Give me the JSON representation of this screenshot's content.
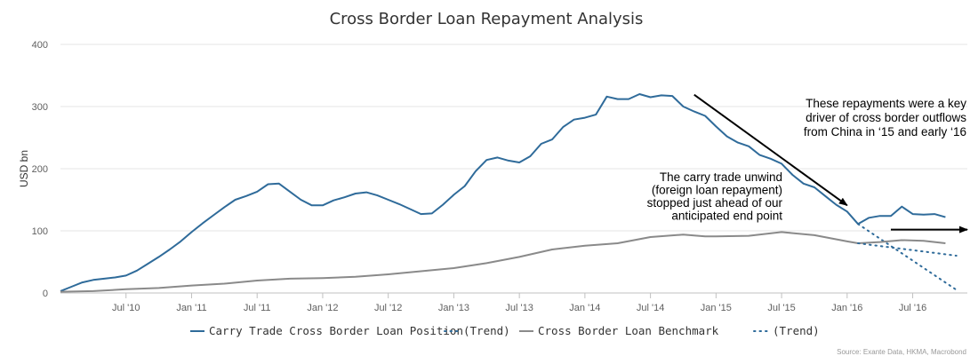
{
  "chart_data": {
    "type": "line",
    "title": "Cross Border Loan Repayment Analysis",
    "ylabel": "USD bn",
    "ylim": [
      0,
      400
    ],
    "yticks": [
      "0",
      "100",
      "200",
      "300",
      "400"
    ],
    "xlim": [
      "2010-01",
      "2016-12"
    ],
    "xticks": [
      {
        "label": "Jul '10",
        "date": "2010-07"
      },
      {
        "label": "Jan '11",
        "date": "2011-01"
      },
      {
        "label": "Jul '11",
        "date": "2011-07"
      },
      {
        "label": "Jan '12",
        "date": "2012-01"
      },
      {
        "label": "Jul '12",
        "date": "2012-07"
      },
      {
        "label": "Jan '13",
        "date": "2013-01"
      },
      {
        "label": "Jul '13",
        "date": "2013-07"
      },
      {
        "label": "Jan '14",
        "date": "2014-01"
      },
      {
        "label": "Jul '14",
        "date": "2014-07"
      },
      {
        "label": "Jan '15",
        "date": "2015-01"
      },
      {
        "label": "Jul '15",
        "date": "2015-07"
      },
      {
        "label": "Jan '16",
        "date": "2016-01"
      },
      {
        "label": "Jul '16",
        "date": "2016-07"
      }
    ],
    "grid": "horizontal",
    "legend_position": "bottom",
    "series": [
      {
        "name": "Carry Trade Cross Border Loan Position",
        "color": "#2f6b9a",
        "style": "solid",
        "points": [
          [
            "2010-01",
            3
          ],
          [
            "2010-02",
            10
          ],
          [
            "2010-03",
            17
          ],
          [
            "2010-04",
            21
          ],
          [
            "2010-05",
            23
          ],
          [
            "2010-06",
            25
          ],
          [
            "2010-07",
            28
          ],
          [
            "2010-08",
            36
          ],
          [
            "2010-09",
            47
          ],
          [
            "2010-10",
            58
          ],
          [
            "2010-11",
            70
          ],
          [
            "2010-12",
            83
          ],
          [
            "2011-01",
            98
          ],
          [
            "2011-02",
            112
          ],
          [
            "2011-03",
            125
          ],
          [
            "2011-04",
            138
          ],
          [
            "2011-05",
            150
          ],
          [
            "2011-06",
            156
          ],
          [
            "2011-07",
            163
          ],
          [
            "2011-08",
            175
          ],
          [
            "2011-09",
            176
          ],
          [
            "2011-10",
            163
          ],
          [
            "2011-11",
            150
          ],
          [
            "2011-12",
            141
          ],
          [
            "2012-01",
            141
          ],
          [
            "2012-02",
            149
          ],
          [
            "2012-03",
            154
          ],
          [
            "2012-04",
            160
          ],
          [
            "2012-05",
            162
          ],
          [
            "2012-06",
            157
          ],
          [
            "2012-07",
            150
          ],
          [
            "2012-08",
            143
          ],
          [
            "2012-09",
            135
          ],
          [
            "2012-10",
            127
          ],
          [
            "2012-11",
            128
          ],
          [
            "2012-12",
            142
          ],
          [
            "2013-01",
            158
          ],
          [
            "2013-02",
            172
          ],
          [
            "2013-03",
            196
          ],
          [
            "2013-04",
            214
          ],
          [
            "2013-05",
            218
          ],
          [
            "2013-06",
            213
          ],
          [
            "2013-07",
            210
          ],
          [
            "2013-08",
            220
          ],
          [
            "2013-09",
            240
          ],
          [
            "2013-10",
            247
          ],
          [
            "2013-11",
            267
          ],
          [
            "2013-12",
            279
          ],
          [
            "2014-01",
            282
          ],
          [
            "2014-02",
            287
          ],
          [
            "2014-03",
            316
          ],
          [
            "2014-04",
            312
          ],
          [
            "2014-05",
            312
          ],
          [
            "2014-06",
            320
          ],
          [
            "2014-07",
            315
          ],
          [
            "2014-08",
            318
          ],
          [
            "2014-09",
            317
          ],
          [
            "2014-10",
            300
          ],
          [
            "2014-11",
            292
          ],
          [
            "2014-12",
            285
          ],
          [
            "2015-01",
            268
          ],
          [
            "2015-02",
            252
          ],
          [
            "2015-03",
            242
          ],
          [
            "2015-04",
            236
          ],
          [
            "2015-05",
            222
          ],
          [
            "2015-06",
            216
          ],
          [
            "2015-07",
            208
          ],
          [
            "2015-08",
            190
          ],
          [
            "2015-09",
            176
          ],
          [
            "2015-10",
            170
          ],
          [
            "2015-11",
            156
          ],
          [
            "2015-12",
            142
          ],
          [
            "2016-01",
            131
          ],
          [
            "2016-02",
            111
          ],
          [
            "2016-03",
            121
          ],
          [
            "2016-04",
            124
          ],
          [
            "2016-05",
            124
          ],
          [
            "2016-06",
            139
          ],
          [
            "2016-07",
            127
          ],
          [
            "2016-08",
            126
          ],
          [
            "2016-09",
            127
          ],
          [
            "2016-10",
            122
          ]
        ]
      },
      {
        "name": "(Trend)",
        "color": "#2f6b9a",
        "style": "dotted",
        "points": [
          [
            "2016-02",
            111
          ],
          [
            "2016-11",
            5
          ]
        ]
      },
      {
        "name": "Cross Border Loan Benchmark",
        "color": "#8a8a8a",
        "style": "solid",
        "points": [
          [
            "2010-01",
            2
          ],
          [
            "2010-04",
            3
          ],
          [
            "2010-07",
            6
          ],
          [
            "2010-10",
            8
          ],
          [
            "2011-01",
            12
          ],
          [
            "2011-04",
            15
          ],
          [
            "2011-07",
            20
          ],
          [
            "2011-10",
            23
          ],
          [
            "2012-01",
            24
          ],
          [
            "2012-04",
            26
          ],
          [
            "2012-07",
            30
          ],
          [
            "2012-10",
            35
          ],
          [
            "2013-01",
            40
          ],
          [
            "2013-04",
            48
          ],
          [
            "2013-07",
            58
          ],
          [
            "2013-10",
            70
          ],
          [
            "2014-01",
            76
          ],
          [
            "2014-04",
            80
          ],
          [
            "2014-07",
            90
          ],
          [
            "2014-10",
            94
          ],
          [
            "2014-12",
            91
          ],
          [
            "2015-01",
            91
          ],
          [
            "2015-04",
            92
          ],
          [
            "2015-07",
            98
          ],
          [
            "2015-10",
            93
          ],
          [
            "2016-01",
            83
          ],
          [
            "2016-02",
            80
          ],
          [
            "2016-04",
            82
          ],
          [
            "2016-06",
            85
          ],
          [
            "2016-08",
            84
          ],
          [
            "2016-10",
            80
          ]
        ]
      },
      {
        "name": "(Trend)",
        "color": "#2f6b9a",
        "style": "dotted",
        "points": [
          [
            "2016-02",
            80
          ],
          [
            "2016-11",
            60
          ]
        ]
      }
    ],
    "annotations": [
      {
        "lines": [
          "These repayments were a key",
          "driver of cross border outflows",
          "from China in ‘15 and early ‘16"
        ],
        "arrow": {
          "from": [
            "2014-11",
            319
          ],
          "to": [
            "2016-01",
            141
          ]
        }
      },
      {
        "lines": [
          "The carry trade unwind",
          "(foreign loan repayment)",
          "stopped just ahead of our",
          "anticipated end point"
        ],
        "arrow": {
          "from": [
            "2016-05",
            102
          ],
          "to": [
            "2016-12",
            102
          ]
        }
      }
    ],
    "legend": [
      {
        "label": "Carry Trade Cross Border Loan Position",
        "color": "#2f6b9a",
        "style": "solid"
      },
      {
        "label": "(Trend)",
        "color": "#2f6b9a",
        "style": "dotted"
      },
      {
        "label": "Cross Border Loan Benchmark",
        "color": "#8a8a8a",
        "style": "solid"
      },
      {
        "label": "(Trend)",
        "color": "#2f6b9a",
        "style": "dotted"
      }
    ],
    "source": "Source: Exante Data, HKMA, Macrobond"
  }
}
